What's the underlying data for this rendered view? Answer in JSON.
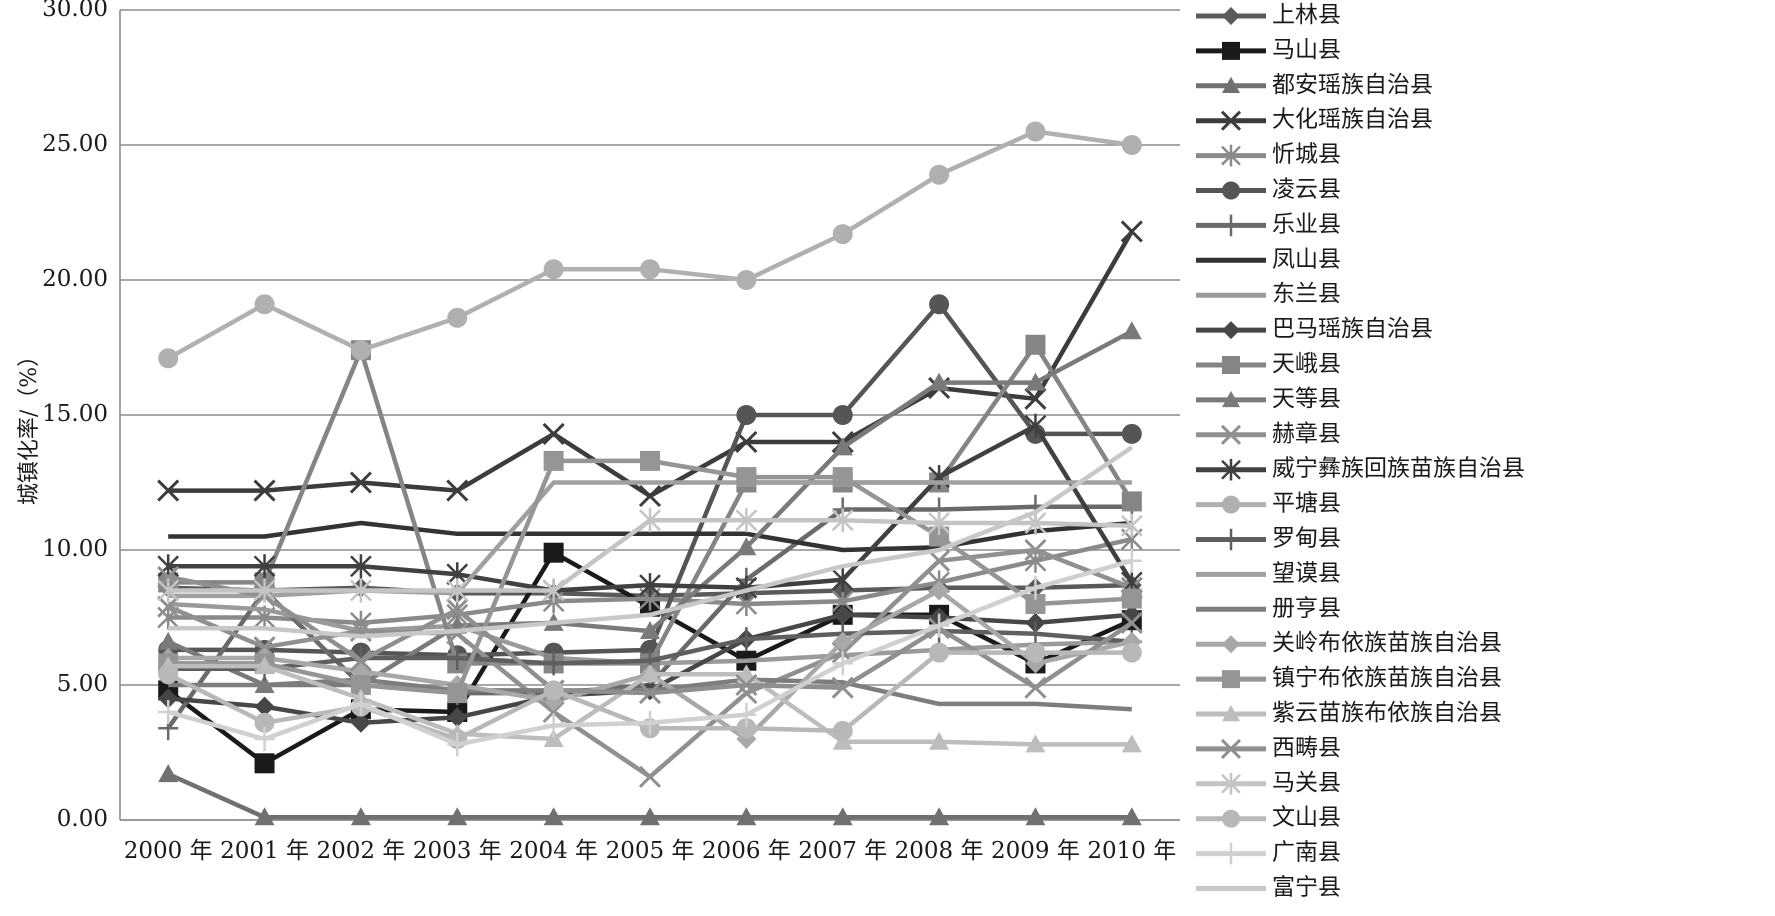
{
  "chart_data": {
    "type": "line",
    "title": "",
    "xlabel": "",
    "ylabel": "城镇化率/（%）",
    "ylim": [
      0,
      30
    ],
    "ytick_labels": [
      "0.00",
      "5.00",
      "10.00",
      "15.00",
      "20.00",
      "25.00",
      "30.00"
    ],
    "grid": "horizontal",
    "legend_position": "right",
    "categories": [
      "2000 年",
      "2001 年",
      "2002 年",
      "2003 年",
      "2004 年",
      "2005 年",
      "2006 年",
      "2007 年",
      "2008 年",
      "2009 年",
      "2010 年"
    ],
    "series": [
      {
        "name": "上林县",
        "marker": "diamond",
        "color": "#5a5a5a",
        "values": [
          8.6,
          8.5,
          8.6,
          8.4,
          8.4,
          8.3,
          8.4,
          8.5,
          8.6,
          8.6,
          8.7
        ]
      },
      {
        "name": "马山县",
        "marker": "square",
        "color": "#1a1a1a",
        "values": [
          4.8,
          2.1,
          4.1,
          4.0,
          9.9,
          7.9,
          5.9,
          7.6,
          7.6,
          5.8,
          7.4
        ]
      },
      {
        "name": "都安瑶族自治县",
        "marker": "triangle",
        "color": "#707070",
        "values": [
          1.7,
          0.1,
          0.1,
          0.1,
          0.1,
          0.1,
          0.1,
          0.1,
          0.1,
          0.1,
          0.1
        ]
      },
      {
        "name": "大化瑶族自治县",
        "marker": "x",
        "color": "#3c3c3c",
        "values": [
          12.2,
          12.2,
          12.5,
          12.2,
          14.3,
          12.0,
          14.0,
          14.0,
          16.0,
          15.6,
          21.8
        ]
      },
      {
        "name": "忻城县",
        "marker": "star",
        "color": "#8a8a8a",
        "values": [
          7.5,
          7.5,
          7.3,
          7.6,
          8.1,
          8.2,
          8.0,
          8.1,
          8.8,
          9.6,
          10.4
        ]
      },
      {
        "name": "凌云县",
        "marker": "circle",
        "color": "#555555",
        "values": [
          6.3,
          6.3,
          6.2,
          6.1,
          6.2,
          6.3,
          15.0,
          15.0,
          19.1,
          14.3,
          14.3
        ]
      },
      {
        "name": "乐业县",
        "marker": "plus",
        "color": "#6a6a6a",
        "values": [
          3.4,
          8.5,
          5.0,
          4.7,
          4.7,
          5.0,
          8.9,
          11.5,
          11.5,
          11.6,
          11.6
        ]
      },
      {
        "name": "凤山县",
        "marker": "none",
        "color": "#333333",
        "values": [
          10.5,
          10.5,
          11.0,
          10.6,
          10.6,
          10.6,
          10.6,
          10.0,
          10.1,
          10.7,
          11.0
        ]
      },
      {
        "name": "东兰县",
        "marker": "none",
        "color": "#9a9a9a",
        "values": [
          8.0,
          7.8,
          7.0,
          7.2,
          6.0,
          5.8,
          5.9,
          6.1,
          6.3,
          6.5,
          6.6
        ]
      },
      {
        "name": "巴马瑶族自治县",
        "marker": "diamond",
        "color": "#474747",
        "values": [
          4.5,
          4.2,
          3.6,
          3.8,
          4.6,
          4.8,
          6.7,
          7.6,
          7.5,
          7.3,
          7.6
        ]
      },
      {
        "name": "天峨县",
        "marker": "square",
        "color": "#858585",
        "values": [
          8.8,
          8.8,
          17.4,
          5.8,
          5.8,
          5.8,
          12.5,
          12.5,
          12.5,
          17.6,
          11.8
        ]
      },
      {
        "name": "天等县",
        "marker": "triangle",
        "color": "#7a7a7a",
        "values": [
          6.6,
          5.0,
          5.0,
          7.2,
          7.3,
          7.0,
          10.1,
          13.8,
          16.2,
          16.2,
          18.1
        ]
      },
      {
        "name": "赫章县",
        "marker": "x",
        "color": "#909090",
        "values": [
          7.9,
          6.4,
          7.0,
          6.9,
          4.0,
          1.6,
          4.7,
          6.2,
          9.6,
          10.0,
          8.6
        ]
      },
      {
        "name": "威宁彝族回族苗族自治县",
        "marker": "star",
        "color": "#404040",
        "values": [
          9.4,
          9.4,
          9.4,
          9.1,
          8.5,
          8.7,
          8.6,
          8.9,
          12.7,
          14.6,
          8.8
        ]
      },
      {
        "name": "平塘县",
        "marker": "circle",
        "color": "#b0b0b0",
        "values": [
          17.1,
          19.1,
          17.4,
          18.6,
          20.4,
          20.4,
          20.0,
          21.7,
          23.9,
          25.5,
          25.0
        ]
      },
      {
        "name": "罗甸县",
        "marker": "plus",
        "color": "#5f5f5f",
        "values": [
          5.6,
          5.6,
          6.0,
          6.0,
          5.8,
          5.9,
          6.7,
          6.9,
          7.0,
          6.9,
          6.6
        ]
      },
      {
        "name": "望谟县",
        "marker": "none",
        "color": "#a0a0a0",
        "values": [
          8.3,
          8.3,
          8.5,
          8.4,
          12.5,
          12.5,
          12.5,
          12.5,
          12.5,
          12.5,
          12.5
        ]
      },
      {
        "name": "册亨县",
        "marker": "none",
        "color": "#7d7d7d",
        "values": [
          5.0,
          5.0,
          5.2,
          4.8,
          4.8,
          4.8,
          5.2,
          5.1,
          4.3,
          4.3,
          4.1
        ]
      },
      {
        "name": "关岭布依族苗族自治县",
        "marker": "diamond",
        "color": "#a8a8a8",
        "values": [
          6.0,
          6.0,
          5.5,
          5.0,
          4.4,
          5.4,
          3.0,
          6.6,
          8.5,
          5.8,
          6.6
        ]
      },
      {
        "name": "镇宁布依族苗族自治县",
        "marker": "square",
        "color": "#959595",
        "values": [
          5.8,
          5.8,
          5.0,
          4.7,
          13.3,
          13.3,
          12.7,
          12.7,
          10.5,
          8.0,
          8.2
        ]
      },
      {
        "name": "紫云苗族布依族自治县",
        "marker": "triangle",
        "color": "#bdbdbd",
        "values": [
          5.7,
          5.7,
          4.5,
          3.2,
          3.0,
          5.4,
          5.4,
          2.9,
          2.9,
          2.8,
          2.8
        ]
      },
      {
        "name": "西畴县",
        "marker": "x",
        "color": "#8f8f8f",
        "values": [
          9.0,
          8.3,
          5.9,
          7.8,
          4.8,
          4.7,
          5.0,
          4.9,
          7.1,
          4.9,
          7.3
        ]
      },
      {
        "name": "马关县",
        "marker": "star",
        "color": "#c4c4c4",
        "values": [
          8.5,
          8.5,
          8.5,
          8.5,
          8.5,
          11.1,
          11.1,
          11.1,
          11.0,
          11.0,
          10.9
        ]
      },
      {
        "name": "文山县",
        "marker": "circle",
        "color": "#b8b8b8",
        "values": [
          5.4,
          3.6,
          4.2,
          3.0,
          4.8,
          3.4,
          3.4,
          3.3,
          6.2,
          6.2,
          6.2
        ]
      },
      {
        "name": "广南县",
        "marker": "plus",
        "color": "#d0d0d0",
        "values": [
          4.0,
          3.0,
          4.3,
          2.8,
          3.5,
          3.6,
          3.9,
          5.8,
          7.2,
          8.6,
          9.6
        ]
      },
      {
        "name": "富宁县",
        "marker": "none",
        "color": "#c8c8c8",
        "values": [
          7.1,
          7.1,
          6.8,
          7.0,
          7.3,
          7.6,
          8.5,
          9.4,
          10.0,
          11.4,
          13.8
        ]
      }
    ]
  }
}
